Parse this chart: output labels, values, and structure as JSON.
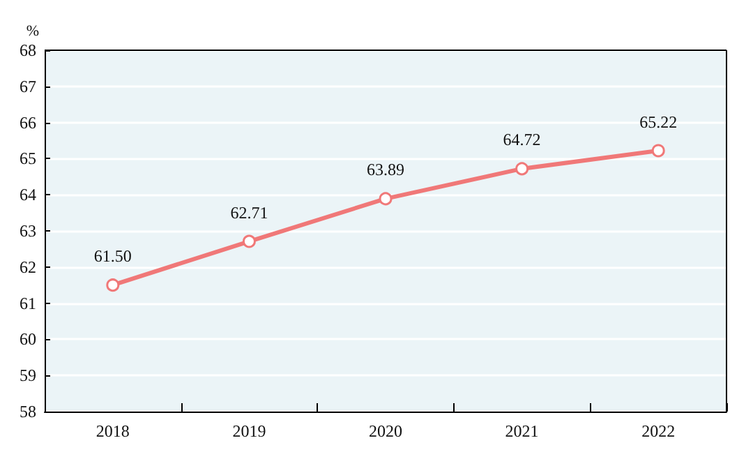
{
  "chart_data": {
    "type": "line",
    "ylabel": "%",
    "categories": [
      "2018",
      "2019",
      "2020",
      "2021",
      "2022"
    ],
    "series": [
      {
        "color": "#f07878",
        "values": [
          61.5,
          62.71,
          63.89,
          64.72,
          65.22
        ],
        "value_labels": [
          "61.50",
          "62.71",
          "63.89",
          "64.72",
          "65.22"
        ]
      }
    ],
    "ylim": [
      58,
      68
    ],
    "yticks": [
      58,
      59,
      60,
      61,
      62,
      63,
      64,
      65,
      66,
      67,
      68
    ],
    "grid": "y",
    "marker": "circle",
    "line_style": "solid"
  }
}
